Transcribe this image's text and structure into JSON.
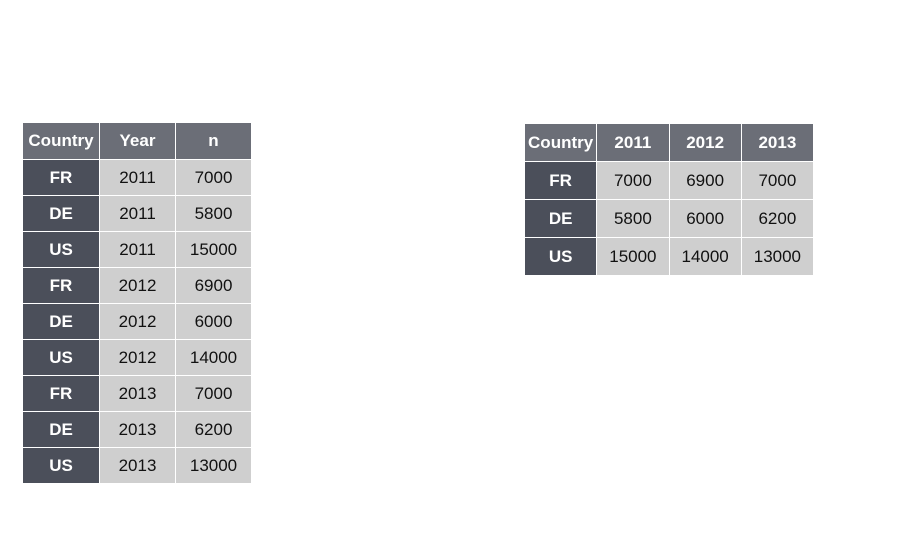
{
  "long_table": {
    "headers": [
      "Country",
      "Year",
      "n"
    ],
    "rows": [
      [
        "FR",
        "2011",
        "7000"
      ],
      [
        "DE",
        "2011",
        "5800"
      ],
      [
        "US",
        "2011",
        "15000"
      ],
      [
        "FR",
        "2012",
        "6900"
      ],
      [
        "DE",
        "2012",
        "6000"
      ],
      [
        "US",
        "2012",
        "14000"
      ],
      [
        "FR",
        "2013",
        "7000"
      ],
      [
        "DE",
        "2013",
        "6200"
      ],
      [
        "US",
        "2013",
        "13000"
      ]
    ]
  },
  "wide_table": {
    "headers": [
      "Country",
      "2011",
      "2012",
      "2013"
    ],
    "rows": [
      [
        "FR",
        "7000",
        "6900",
        "7000"
      ],
      [
        "DE",
        "5800",
        "6000",
        "6200"
      ],
      [
        "US",
        "15000",
        "14000",
        "13000"
      ]
    ]
  },
  "colors": {
    "header_bg": "#6b6e77",
    "key_bg": "#4b4f5a",
    "value_bg": "#cfcfcf",
    "header_text": "#ffffff",
    "value_text": "#111111"
  }
}
